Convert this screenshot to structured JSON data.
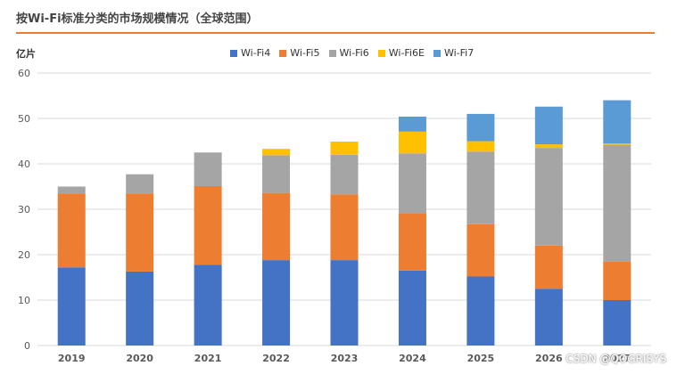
{
  "title": "按Wi-Fi标准分类的市场规模情况（全球范围）",
  "unit_label": "亿片",
  "watermark": "CSDN @QOGRISYS",
  "colors": {
    "accent": "#ED7D31",
    "grid": "#D9D9D9",
    "axis_text": "#595959"
  },
  "chart_data": {
    "type": "bar",
    "stacked": true,
    "title": "按Wi-Fi标准分类的市场规模情况（全球范围）",
    "ylabel": "亿片",
    "xlabel": "",
    "ylim": [
      0,
      60
    ],
    "yticks": [
      0,
      10,
      20,
      30,
      40,
      50,
      60
    ],
    "grid": true,
    "legend_position": "top",
    "categories": [
      "2019",
      "2020",
      "2021",
      "2022",
      "2023",
      "2024",
      "2025",
      "2026",
      "2027"
    ],
    "series": [
      {
        "name": "Wi-Fi4",
        "color": "#4472C4",
        "values": [
          17.2,
          16.3,
          17.8,
          18.8,
          18.8,
          16.5,
          15.2,
          12.5,
          10.0
        ]
      },
      {
        "name": "Wi-Fi5",
        "color": "#ED7D31",
        "values": [
          16.3,
          17.2,
          17.3,
          14.8,
          14.5,
          12.6,
          11.5,
          9.5,
          8.5
        ]
      },
      {
        "name": "Wi-Fi6",
        "color": "#A5A5A5",
        "values": [
          1.5,
          4.2,
          7.4,
          8.3,
          8.7,
          13.2,
          16.0,
          21.5,
          25.7
        ]
      },
      {
        "name": "Wi-Fi6E",
        "color": "#FFC000",
        "values": [
          0,
          0,
          0,
          1.4,
          2.9,
          4.8,
          2.3,
          0.8,
          0.3
        ]
      },
      {
        "name": "Wi-Fi7",
        "color": "#5B9BD5",
        "values": [
          0,
          0,
          0,
          0,
          0,
          3.3,
          6.0,
          8.3,
          9.5
        ]
      }
    ]
  }
}
